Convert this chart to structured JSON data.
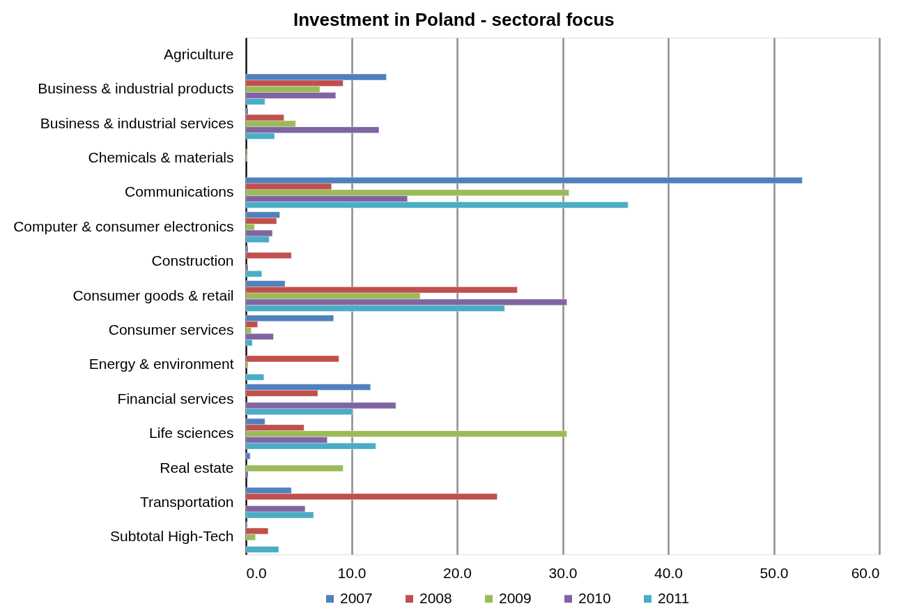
{
  "chart_data": {
    "type": "bar",
    "orientation": "horizontal",
    "title": "Investment  in Poland - sectoral focus",
    "categories": [
      "Agriculture",
      "Business & industrial products",
      "Business & industrial services",
      "Chemicals & materials",
      "Communications",
      "Computer & consumer electronics",
      "Construction ",
      "Consumer goods & retail",
      "Consumer services",
      "Energy & environment",
      "Financial services",
      "Life sciences",
      "Real estate",
      "Transportation",
      "Subtotal High-Tech"
    ],
    "series": [
      {
        "name": "2007",
        "color": "#4f81bd",
        "values": [
          null,
          13.3,
          0.2,
          null,
          52.7,
          3.2,
          0.2,
          3.7,
          8.3,
          null,
          11.8,
          1.8,
          0.4,
          4.3,
          0.1
        ]
      },
      {
        "name": "2008",
        "color": "#c0504d",
        "values": [
          null,
          9.2,
          3.6,
          0.1,
          8.1,
          2.9,
          4.3,
          25.7,
          1.1,
          8.8,
          6.8,
          5.5,
          null,
          23.8,
          2.1
        ]
      },
      {
        "name": "2009",
        "color": "#9bbb59",
        "values": [
          null,
          7.0,
          4.7,
          0.1,
          30.6,
          0.8,
          null,
          16.5,
          0.5,
          0.2,
          null,
          30.4,
          9.2,
          null,
          0.9
        ]
      },
      {
        "name": "2010",
        "color": "#8064a2",
        "values": [
          null,
          8.5,
          12.6,
          null,
          15.3,
          2.5,
          0.2,
          30.4,
          2.6,
          null,
          14.2,
          7.7,
          0.2,
          5.6,
          null
        ]
      },
      {
        "name": "2011",
        "color": "#4bacc6",
        "values": [
          null,
          1.8,
          2.7,
          null,
          36.2,
          2.2,
          1.5,
          24.5,
          0.6,
          1.7,
          10.1,
          12.3,
          null,
          6.4,
          3.1
        ]
      }
    ],
    "xlim": [
      0,
      60
    ],
    "xticks": [
      {
        "value": 0,
        "label": "0.0"
      },
      {
        "value": 10,
        "label": "10.0"
      },
      {
        "value": 20,
        "label": "20.0"
      },
      {
        "value": 30,
        "label": "30.0"
      },
      {
        "value": 40,
        "label": "40.0"
      },
      {
        "value": 50,
        "label": "50.0"
      },
      {
        "value": 60,
        "label": "60.0"
      }
    ],
    "grid": "x",
    "legend": "bottom"
  }
}
